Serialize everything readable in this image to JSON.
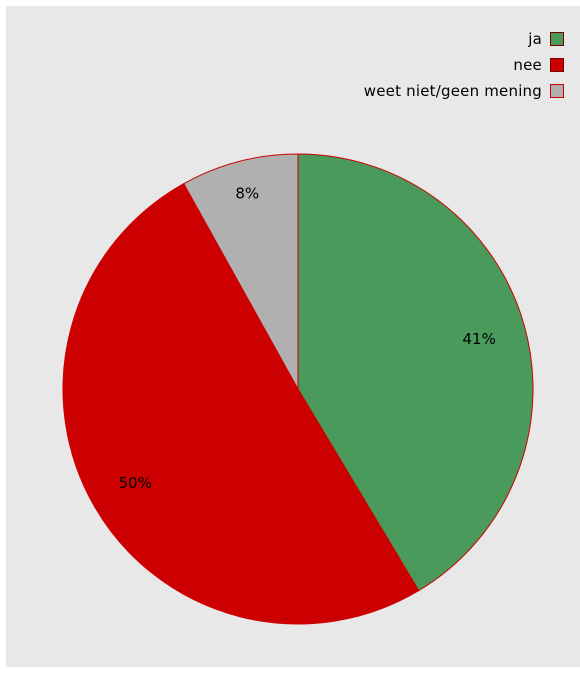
{
  "chart_data": {
    "type": "pie",
    "title": "",
    "slices": [
      {
        "label": "ja",
        "value": 41,
        "value_label": "41%",
        "color": "#4a9a5c"
      },
      {
        "label": "nee",
        "value": 50,
        "value_label": "50%",
        "color": "#cc0000"
      },
      {
        "label": "weet niet/geen mening",
        "value": 8,
        "value_label": "8%",
        "color": "#b0b0b0"
      }
    ],
    "edge_color": "#cc0000",
    "background": "#e8e8e8",
    "legend_position": "top-right"
  }
}
